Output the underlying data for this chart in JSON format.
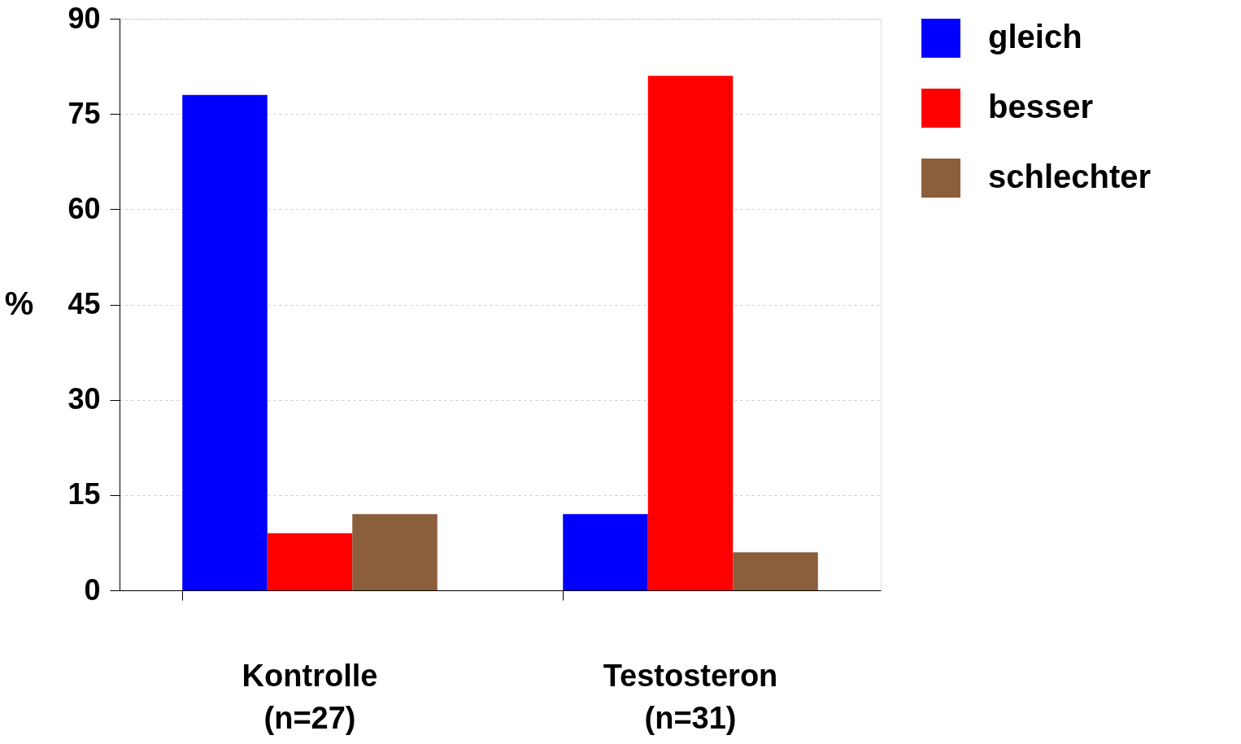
{
  "chart_data": {
    "type": "bar",
    "categories": [
      "Kontrolle\n(n=27)",
      "Testosteron\n(n=31)"
    ],
    "ylabel": "%",
    "series": [
      {
        "name": "gleich",
        "color": "#0000ff",
        "values": [
          78,
          12
        ]
      },
      {
        "name": "besser",
        "color": "#ff0000",
        "values": [
          9,
          81
        ]
      },
      {
        "name": " schlechter",
        "color": "#8b5e3c",
        "values": [
          12,
          6
        ]
      }
    ],
    "ylim": [
      0,
      90
    ],
    "yticks": [
      0,
      15,
      30,
      45,
      60,
      75,
      90
    ],
    "grid": "y",
    "legend": "right"
  }
}
